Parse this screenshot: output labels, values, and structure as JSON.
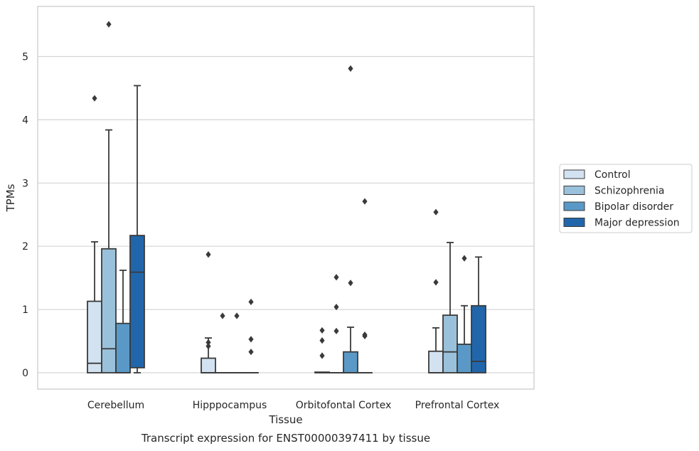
{
  "caption": "Transcript expression for ENST00000397411 by tissue",
  "chart_data": {
    "type": "box",
    "title": "",
    "xlabel": "Tissue",
    "ylabel": "TPMs",
    "ylim": [
      -0.27,
      5.8
    ],
    "yticks": [
      0,
      1,
      2,
      3,
      4,
      5
    ],
    "grid": true,
    "legend_placement": "center-right",
    "categories": [
      "Cerebellum",
      "Hipppocampus",
      "Orbitofontal Cortex",
      "Prefrontal Cortex"
    ],
    "series": [
      {
        "name": "Control",
        "color": "#d3e2f0",
        "boxes": [
          {
            "q1": 0.0,
            "median": 0.15,
            "q3": 1.13,
            "whisker_low": 0.0,
            "whisker_high": 2.07,
            "outliers": [
              4.34
            ]
          },
          {
            "q1": 0.0,
            "median": 0.0,
            "q3": 0.23,
            "whisker_low": 0.0,
            "whisker_high": 0.55,
            "outliers": [
              1.87,
              0.48,
              0.42
            ]
          },
          {
            "q1": 0.0,
            "median": 0.0,
            "q3": 0.01,
            "whisker_low": 0.0,
            "whisker_high": 0.01,
            "outliers": [
              0.67,
              0.51,
              0.27
            ]
          },
          {
            "q1": 0.0,
            "median": 0.0,
            "q3": 0.34,
            "whisker_low": 0.0,
            "whisker_high": 0.71,
            "outliers": [
              2.54,
              1.43
            ]
          }
        ]
      },
      {
        "name": "Schizophrenia",
        "color": "#9ac1db",
        "boxes": [
          {
            "q1": 0.0,
            "median": 0.38,
            "q3": 1.96,
            "whisker_low": 0.0,
            "whisker_high": 3.84,
            "outliers": [
              5.51
            ]
          },
          {
            "q1": 0.0,
            "median": 0.0,
            "q3": 0.0,
            "whisker_low": 0.0,
            "whisker_high": 0.0,
            "outliers": [
              0.9
            ]
          },
          {
            "q1": 0.0,
            "median": 0.0,
            "q3": 0.0,
            "whisker_low": 0.0,
            "whisker_high": 0.0,
            "outliers": [
              1.51,
              1.04,
              0.66
            ]
          },
          {
            "q1": 0.0,
            "median": 0.33,
            "q3": 0.91,
            "whisker_low": 0.0,
            "whisker_high": 2.06,
            "outliers": []
          }
        ]
      },
      {
        "name": "Bipolar disorder",
        "color": "#5a99c7",
        "boxes": [
          {
            "q1": 0.0,
            "median": 0.0,
            "q3": 0.78,
            "whisker_low": 0.0,
            "whisker_high": 1.62,
            "outliers": []
          },
          {
            "q1": 0.0,
            "median": 0.0,
            "q3": 0.0,
            "whisker_low": 0.0,
            "whisker_high": 0.0,
            "outliers": [
              0.9
            ]
          },
          {
            "q1": 0.0,
            "median": 0.0,
            "q3": 0.33,
            "whisker_low": 0.0,
            "whisker_high": 0.72,
            "outliers": [
              4.81,
              1.42
            ]
          },
          {
            "q1": 0.0,
            "median": 0.0,
            "q3": 0.45,
            "whisker_low": 0.0,
            "whisker_high": 1.06,
            "outliers": [
              1.81
            ]
          }
        ]
      },
      {
        "name": "Major depression",
        "color": "#2166ab",
        "boxes": [
          {
            "q1": 0.08,
            "median": 1.59,
            "q3": 2.17,
            "whisker_low": 0.0,
            "whisker_high": 4.54,
            "outliers": []
          },
          {
            "q1": 0.0,
            "median": 0.0,
            "q3": 0.0,
            "whisker_low": 0.0,
            "whisker_high": 0.0,
            "outliers": [
              1.12,
              0.53,
              0.33
            ]
          },
          {
            "q1": 0.0,
            "median": 0.0,
            "q3": 0.0,
            "whisker_low": 0.0,
            "whisker_high": 0.0,
            "outliers": [
              2.71,
              0.6,
              0.58
            ]
          },
          {
            "q1": 0.0,
            "median": 0.18,
            "q3": 1.06,
            "whisker_low": 0.0,
            "whisker_high": 1.83,
            "outliers": []
          }
        ]
      }
    ]
  }
}
